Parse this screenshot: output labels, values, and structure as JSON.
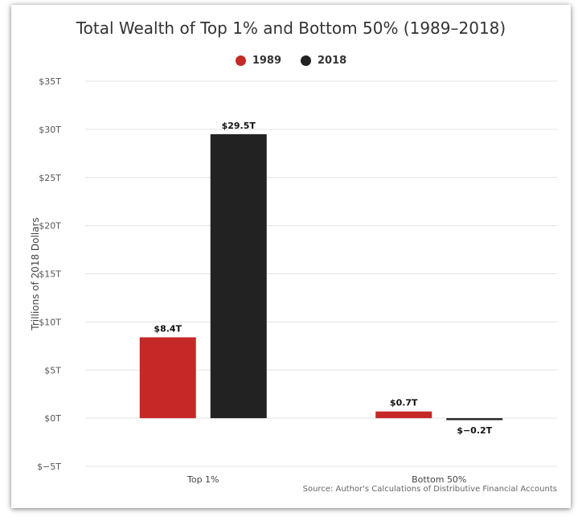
{
  "chart_data": {
    "type": "bar",
    "title": "Total Wealth of Top 1% and Bottom 50% (1989–2018)",
    "ylabel": "Trillions of 2018 Dollars",
    "xlabel": "",
    "categories": [
      "Top 1%",
      "Bottom 50%"
    ],
    "series": [
      {
        "name": "1989",
        "color": "#c62828",
        "values": [
          8.4,
          0.7
        ],
        "labels": [
          "$8.4T",
          "$0.7T"
        ]
      },
      {
        "name": "2018",
        "color": "#222222",
        "values": [
          29.5,
          -0.2
        ],
        "labels": [
          "$29.5T",
          "$−0.2T"
        ]
      }
    ],
    "ylim": [
      -5,
      35
    ],
    "yticks": [
      -5,
      0,
      5,
      10,
      15,
      20,
      25,
      30,
      35
    ],
    "ytick_labels": [
      "$−5T",
      "$0T",
      "$5T",
      "$10T",
      "$15T",
      "$20T",
      "$25T",
      "$30T",
      "$35T"
    ],
    "grid": true,
    "legend_position": "top-center",
    "source": "Source: Author's Calculations of Distributive Financial Accounts"
  }
}
